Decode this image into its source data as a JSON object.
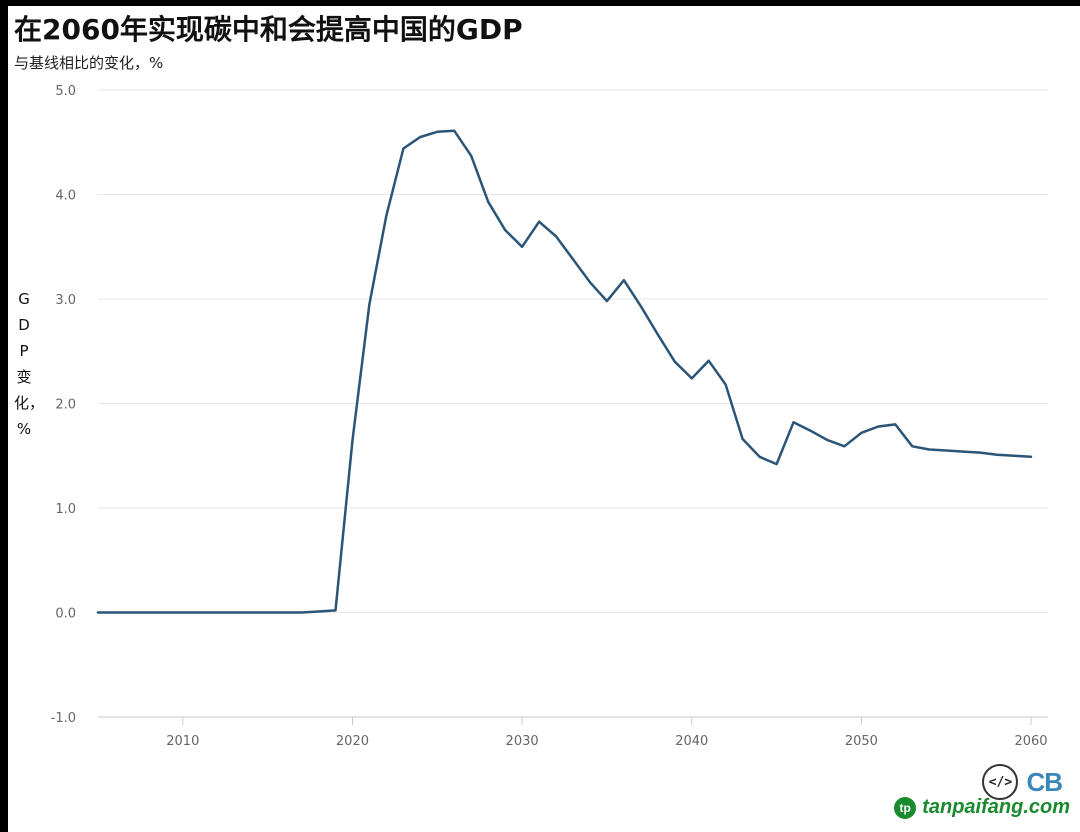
{
  "chart_data": {
    "type": "line",
    "title": "在2060年实现碳中和会提高中国的GDP",
    "subtitle": "与基线相比的变化，%",
    "ylabel": "GDP变化，%",
    "xlabel": "",
    "xlim": [
      2005,
      2061
    ],
    "ylim": [
      -1.0,
      5.0
    ],
    "x_ticks": [
      2010,
      2020,
      2030,
      2040,
      2050,
      2060
    ],
    "y_ticks": [
      "-1.0",
      "0.0",
      "1.0",
      "2.0",
      "3.0",
      "4.0",
      "5.0"
    ],
    "grid": true,
    "line_color": "#2a5578",
    "series": [
      {
        "x": [
          2005,
          2006,
          2007,
          2008,
          2009,
          2010,
          2011,
          2012,
          2013,
          2014,
          2015,
          2016,
          2017,
          2018,
          2019,
          2020,
          2021,
          2022,
          2023,
          2024,
          2025,
          2026,
          2027,
          2028,
          2029,
          2030,
          2031,
          2032,
          2033,
          2034,
          2035,
          2036,
          2037,
          2038,
          2039,
          2040,
          2041,
          2042,
          2043,
          2044,
          2045,
          2046,
          2047,
          2048,
          2049,
          2050,
          2051,
          2052,
          2053,
          2054,
          2055,
          2056,
          2057,
          2058,
          2059,
          2060
        ],
        "y": [
          0.0,
          0.0,
          0.0,
          0.0,
          0.0,
          0.0,
          0.0,
          0.0,
          0.0,
          0.0,
          0.0,
          0.0,
          0.0,
          0.01,
          0.02,
          1.65,
          2.95,
          3.8,
          4.44,
          4.55,
          4.6,
          4.61,
          4.37,
          3.93,
          3.66,
          3.5,
          3.74,
          3.6,
          3.38,
          3.16,
          2.98,
          3.18,
          2.93,
          2.66,
          2.4,
          2.24,
          2.41,
          2.18,
          1.66,
          1.49,
          1.42,
          1.82,
          1.74,
          1.65,
          1.59,
          1.72,
          1.78,
          1.8,
          1.59,
          1.56,
          1.55,
          1.54,
          1.53,
          1.51,
          1.5,
          1.49
        ]
      }
    ]
  },
  "badges": {
    "code_icon": "</>",
    "cb_logo": "CB",
    "watermark_text": "tanpaifang.com",
    "watermark_icon": "tp"
  }
}
